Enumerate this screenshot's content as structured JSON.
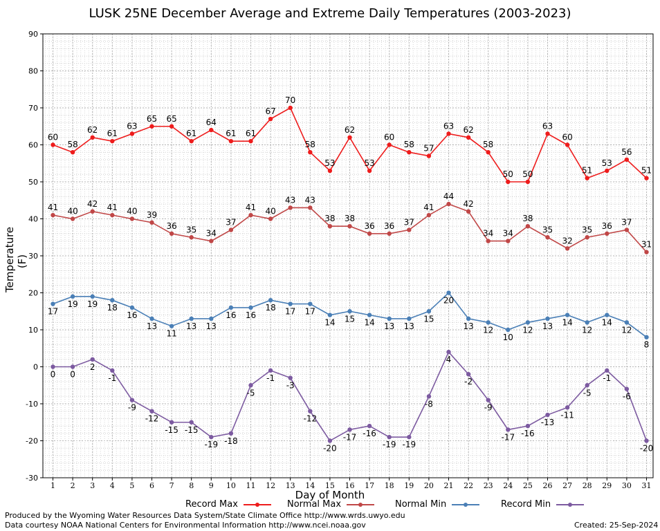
{
  "chart_data": {
    "type": "line",
    "title": "LUSK 25NE December Average and Extreme Daily Temperatures (2003-2023)",
    "xlabel": "Day of Month",
    "ylabel": "Temperature (F)",
    "ylim": [
      -30,
      90
    ],
    "yticks": [
      -30,
      -20,
      -10,
      0,
      10,
      20,
      30,
      40,
      50,
      60,
      70,
      80,
      90
    ],
    "x": [
      1,
      2,
      3,
      4,
      5,
      6,
      7,
      8,
      9,
      10,
      11,
      12,
      13,
      14,
      15,
      16,
      17,
      18,
      19,
      20,
      21,
      22,
      23,
      24,
      25,
      26,
      27,
      28,
      29,
      30,
      31
    ],
    "grid": true,
    "legend_position": "bottom",
    "series": [
      {
        "name": "Record Max",
        "color": "#ee1c1c",
        "label_position": "above",
        "values": [
          60,
          58,
          62,
          61,
          63,
          65,
          65,
          61,
          64,
          61,
          61,
          67,
          70,
          58,
          53,
          62,
          53,
          60,
          58,
          57,
          63,
          62,
          58,
          50,
          50,
          63,
          60,
          51,
          53,
          56,
          51
        ]
      },
      {
        "name": "Normal Max",
        "color": "#c04747",
        "label_position": "above",
        "values": [
          41,
          40,
          42,
          41,
          40,
          39,
          36,
          35,
          34,
          37,
          41,
          40,
          43,
          43,
          38,
          38,
          36,
          36,
          37,
          41,
          44,
          42,
          34,
          34,
          38,
          35,
          32,
          35,
          36,
          37,
          31
        ]
      },
      {
        "name": "Normal Min",
        "color": "#4a7fb6",
        "label_position": "below",
        "values": [
          17,
          19,
          19,
          18,
          16,
          13,
          11,
          13,
          13,
          16,
          16,
          18,
          17,
          17,
          14,
          15,
          14,
          13,
          13,
          15,
          20,
          13,
          12,
          10,
          12,
          13,
          14,
          12,
          14,
          12,
          8
        ]
      },
      {
        "name": "Record Min",
        "color": "#7c5aa0",
        "label_position": "below",
        "values": [
          0,
          0,
          2,
          -1,
          -9,
          -12,
          -15,
          -15,
          -19,
          -18,
          -5,
          -1,
          -3,
          -12,
          -20,
          -17,
          -16,
          -19,
          -19,
          -8,
          4,
          -2,
          -9,
          -17,
          -16,
          -13,
          -11,
          -5,
          -1,
          -6,
          -20
        ]
      }
    ]
  },
  "footer": {
    "produced_by": "Produced by the Wyoming Water Resources Data System/State Climate Office http://www.wrds.uwyo.edu",
    "courtesy": "Data courtesy NOAA National Centers for Environmental Information http://www.ncei.noaa.gov",
    "created": "Created:  25-Sep-2024"
  }
}
